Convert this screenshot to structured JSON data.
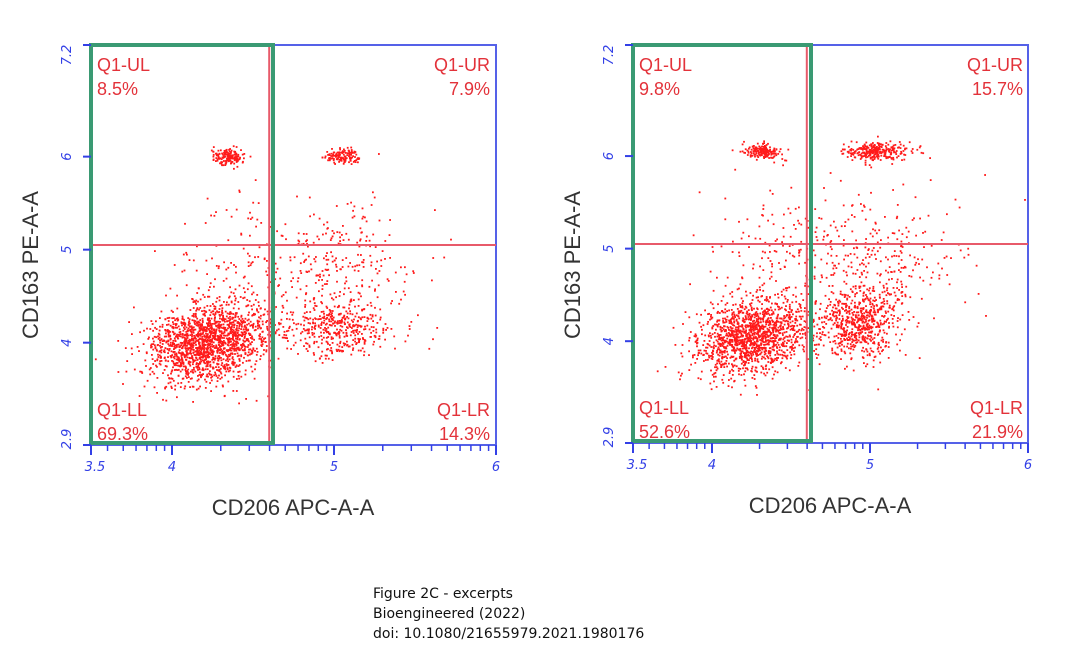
{
  "chart_data": [
    {
      "type": "scatter",
      "xlabel": "CD206 APC-A-A",
      "ylabel": "CD163 PE-A-A",
      "x_scale": "log",
      "y_scale": "log",
      "xlim": [
        3.5,
        6
      ],
      "ylim": [
        2.9,
        7.2
      ],
      "x_tick_labels": [
        "3.5",
        "4",
        "5",
        "6"
      ],
      "y_tick_labels": [
        "2.9",
        "4",
        "5",
        "6",
        "7.2"
      ],
      "quadrant_gate": {
        "x": 4.6,
        "y": 5.05
      },
      "highlight_color": "#3a9a73",
      "point_color": "#ff1a1a",
      "quadrants": [
        {
          "name": "Q1-UL",
          "percent": "8.5%"
        },
        {
          "name": "Q1-UR",
          "percent": "7.9%"
        },
        {
          "name": "Q1-LL",
          "percent": "69.3%"
        },
        {
          "name": "Q1-LR",
          "percent": "14.3%"
        }
      ],
      "clusters": [
        {
          "x": 4.23,
          "y": 4.0,
          "sx": 0.17,
          "sy": 0.22,
          "n": 1700,
          "rot": -0.55
        },
        {
          "x": 4.35,
          "y": 6.0,
          "sx": 0.05,
          "sy": 0.04,
          "n": 160,
          "rot": -0.3
        },
        {
          "x": 5.05,
          "y": 6.0,
          "sx": 0.06,
          "sy": 0.04,
          "n": 130,
          "rot": 0
        },
        {
          "x": 5.02,
          "y": 4.15,
          "sx": 0.18,
          "sy": 0.16,
          "n": 420,
          "rot": 0
        },
        {
          "x": 5.0,
          "y": 4.8,
          "sx": 0.25,
          "sy": 0.35,
          "n": 260,
          "rot": 0
        },
        {
          "x": 4.4,
          "y": 4.9,
          "sx": 0.22,
          "sy": 0.35,
          "n": 120,
          "rot": 0
        }
      ]
    },
    {
      "type": "scatter",
      "xlabel": "CD206 APC-A-A",
      "ylabel": "CD163 PE-A-A",
      "x_scale": "log",
      "y_scale": "log",
      "xlim": [
        3.5,
        6
      ],
      "ylim": [
        2.9,
        7.2
      ],
      "x_tick_labels": [
        "3.5",
        "4",
        "5",
        "6"
      ],
      "y_tick_labels": [
        "2.9",
        "4",
        "5",
        "6",
        "7.2"
      ],
      "quadrant_gate": {
        "x": 4.6,
        "y": 5.05
      },
      "highlight_color": "#3a9a73",
      "point_color": "#ff1a1a",
      "quadrants": [
        {
          "name": "Q1-UL",
          "percent": "9.8%"
        },
        {
          "name": "Q1-UR",
          "percent": "15.7%"
        },
        {
          "name": "Q1-LL",
          "percent": "52.6%"
        },
        {
          "name": "Q1-LR",
          "percent": "21.9%"
        }
      ],
      "clusters": [
        {
          "x": 4.25,
          "y": 4.05,
          "sx": 0.17,
          "sy": 0.22,
          "n": 1400,
          "rot": -0.55
        },
        {
          "x": 4.33,
          "y": 6.05,
          "sx": 0.06,
          "sy": 0.04,
          "n": 180,
          "rot": -0.3
        },
        {
          "x": 5.05,
          "y": 6.05,
          "sx": 0.1,
          "sy": 0.05,
          "n": 280,
          "rot": 0
        },
        {
          "x": 4.93,
          "y": 4.2,
          "sx": 0.12,
          "sy": 0.2,
          "n": 620,
          "rot": 0
        },
        {
          "x": 5.0,
          "y": 4.9,
          "sx": 0.3,
          "sy": 0.35,
          "n": 300,
          "rot": 0
        },
        {
          "x": 4.4,
          "y": 4.9,
          "sx": 0.22,
          "sy": 0.35,
          "n": 130,
          "rot": 0
        }
      ]
    }
  ],
  "caption": {
    "line1": "Figure 2C - excerpts",
    "line2": "Bioengineered (2022)",
    "line3": "doi: 10.1080/21655979.2021.1980176"
  }
}
